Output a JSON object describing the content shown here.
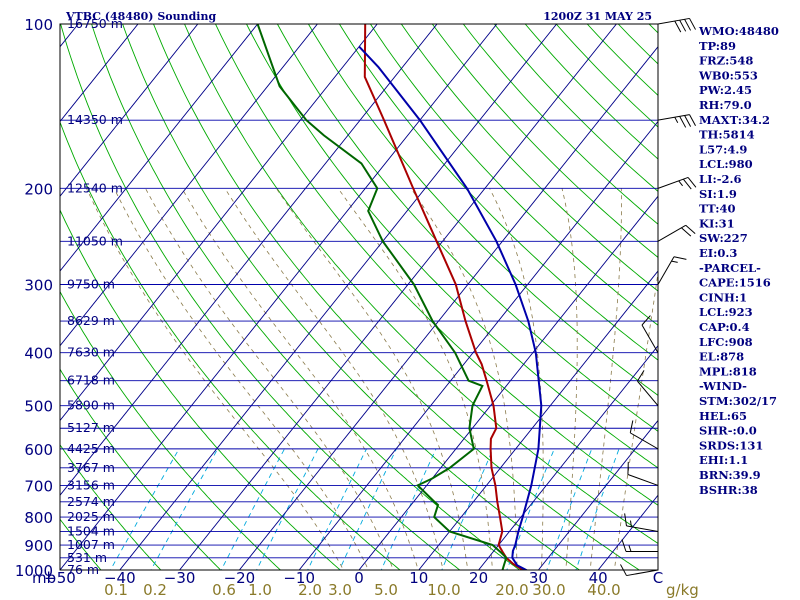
{
  "header": {
    "station": "VTBC (48480) Sounding",
    "time": "1200Z 31 MAY 25"
  },
  "chart_data": {
    "type": "line",
    "title": "VTBC (48480) Sounding",
    "subtitle": "1200Z 31 MAY 25",
    "y_unit": "mb",
    "x_unit": "C",
    "mixing_ratio_unit": "g/kg",
    "ylim": [
      1000,
      100
    ],
    "xlim": [
      -50,
      50
    ],
    "pressure_ticks": [
      100,
      200,
      300,
      400,
      500,
      600,
      700,
      800,
      900,
      1000
    ],
    "temp_ticks": [
      -50,
      -40,
      -30,
      -20,
      -10,
      0,
      10,
      20,
      30,
      40,
      50
    ],
    "temp_tick_labels": [
      "−50",
      "−40",
      "−30",
      "−20",
      "−10",
      "0",
      "10",
      "20",
      "30",
      "40",
      "C"
    ],
    "mixing_ratio_labels": [
      "0.1",
      "0.2",
      "0.6",
      "1.0",
      "2.0",
      "3.0",
      "5.0",
      "10.0",
      "20.0",
      "30.0",
      "40.0"
    ],
    "mixing_ratio_values": [
      0.1,
      0.2,
      0.6,
      1.0,
      2.0,
      3.0,
      5.0,
      10.0,
      20.0,
      30.0,
      40.0
    ],
    "heights": [
      {
        "p": 100,
        "label": "16750 m"
      },
      {
        "p": 150,
        "label": "14350 m"
      },
      {
        "p": 200,
        "label": "12540 m"
      },
      {
        "p": 250,
        "label": "11050 m"
      },
      {
        "p": 300,
        "label": "9750 m"
      },
      {
        "p": 350,
        "label": "8629 m"
      },
      {
        "p": 400,
        "label": "7630 m"
      },
      {
        "p": 450,
        "label": "6718 m"
      },
      {
        "p": 500,
        "label": "5890 m"
      },
      {
        "p": 550,
        "label": "5127 m"
      },
      {
        "p": 600,
        "label": "4425 m"
      },
      {
        "p": 650,
        "label": "3767 m"
      },
      {
        "p": 700,
        "label": "3156 m"
      },
      {
        "p": 750,
        "label": "2574 m"
      },
      {
        "p": 800,
        "label": "2025 m"
      },
      {
        "p": 850,
        "label": "1504 m"
      },
      {
        "p": 900,
        "label": "1007 m"
      },
      {
        "p": 950,
        "label": "531 m"
      },
      {
        "p": 1000,
        "label": "76 m"
      }
    ],
    "series": [
      {
        "name": "Temperature",
        "color": "#aa0000",
        "points": [
          [
            1006,
            28.6
          ],
          [
            1000,
            27.4
          ],
          [
            975,
            25.0
          ],
          [
            950,
            23.0
          ],
          [
            925,
            21.5
          ],
          [
            900,
            20.0
          ],
          [
            850,
            18.8
          ],
          [
            800,
            16.5
          ],
          [
            750,
            14.0
          ],
          [
            700,
            11.5
          ],
          [
            650,
            8.5
          ],
          [
            600,
            5.8
          ],
          [
            575,
            4.5
          ],
          [
            550,
            4.0
          ],
          [
            500,
            0.5
          ],
          [
            450,
            -4.0
          ],
          [
            420,
            -7.0
          ],
          [
            400,
            -9.5
          ],
          [
            350,
            -15.5
          ],
          [
            300,
            -22.0
          ],
          [
            250,
            -31.0
          ],
          [
            200,
            -42.0
          ],
          [
            150,
            -56.0
          ],
          [
            125,
            -65.0
          ],
          [
            100,
            -72.0
          ]
        ]
      },
      {
        "name": "Dewpoint",
        "color": "#006600",
        "points": [
          [
            1006,
            24.8
          ],
          [
            1000,
            24.0
          ],
          [
            975,
            23.5
          ],
          [
            950,
            23.0
          ],
          [
            930,
            21.5
          ],
          [
            900,
            19.0
          ],
          [
            850,
            10.0
          ],
          [
            800,
            5.5
          ],
          [
            760,
            4.5
          ],
          [
            750,
            3.5
          ],
          [
            700,
            -1.5
          ],
          [
            680,
            0.0
          ],
          [
            650,
            1.5
          ],
          [
            600,
            3.0
          ],
          [
            550,
            -0.5
          ],
          [
            500,
            -3.0
          ],
          [
            460,
            -4.0
          ],
          [
            450,
            -7.0
          ],
          [
            400,
            -13.0
          ],
          [
            350,
            -21.0
          ],
          [
            300,
            -29.0
          ],
          [
            250,
            -40.0
          ],
          [
            220,
            -46.5
          ],
          [
            200,
            -48.0
          ],
          [
            180,
            -54.0
          ],
          [
            160,
            -64.0
          ],
          [
            150,
            -69.0
          ],
          [
            130,
            -78.0
          ],
          [
            100,
            -90.0
          ]
        ]
      },
      {
        "name": "Parcel",
        "color": "#0000aa",
        "points": [
          [
            1006,
            28.6
          ],
          [
            980,
            25.8
          ],
          [
            950,
            24.0
          ],
          [
            923,
            23.2
          ],
          [
            900,
            22.8
          ],
          [
            850,
            21.5
          ],
          [
            800,
            20.3
          ],
          [
            700,
            17.5
          ],
          [
            600,
            13.8
          ],
          [
            500,
            8.5
          ],
          [
            400,
            0.5
          ],
          [
            350,
            -5.0
          ],
          [
            300,
            -12.0
          ],
          [
            250,
            -21.0
          ],
          [
            200,
            -33.0
          ],
          [
            150,
            -50.0
          ],
          [
            120,
            -64.0
          ],
          [
            110,
            -70.0
          ]
        ]
      }
    ],
    "barbs": [
      {
        "p": 1000,
        "dir": 260,
        "spd": 10
      },
      {
        "p": 925,
        "dir": 270,
        "spd": 15
      },
      {
        "p": 850,
        "dir": 280,
        "spd": 15
      },
      {
        "p": 700,
        "dir": 290,
        "spd": 10
      },
      {
        "p": 600,
        "dir": 300,
        "spd": 10
      },
      {
        "p": 500,
        "dir": 320,
        "spd": 10
      },
      {
        "p": 400,
        "dir": 330,
        "spd": 10
      },
      {
        "p": 300,
        "dir": 30,
        "spd": 15
      },
      {
        "p": 250,
        "dir": 60,
        "spd": 20
      },
      {
        "p": 200,
        "dir": 70,
        "spd": 25
      },
      {
        "p": 150,
        "dir": 80,
        "spd": 35
      },
      {
        "p": 100,
        "dir": 80,
        "spd": 40
      }
    ]
  },
  "indices": [
    {
      "key": "WMO",
      "value": "48480",
      "text": "WMO:48480"
    },
    {
      "key": "TP",
      "value": "89",
      "text": "TP:89"
    },
    {
      "key": "FRZ",
      "value": "548",
      "text": "FRZ:548"
    },
    {
      "key": "WB0",
      "value": "553",
      "text": "WB0:553"
    },
    {
      "key": "PW",
      "value": "2.45",
      "text": "PW:2.45"
    },
    {
      "key": "RH",
      "value": "79.0",
      "text": "RH:79.0"
    },
    {
      "key": "MAXT",
      "value": "34.2",
      "text": "MAXT:34.2"
    },
    {
      "key": "TH",
      "value": "5814",
      "text": "TH:5814"
    },
    {
      "key": "L57",
      "value": "4.9",
      "text": "L57:4.9"
    },
    {
      "key": "LCL",
      "value": "980",
      "text": "LCL:980"
    },
    {
      "key": "LI",
      "value": "-2.6",
      "text": "LI:-2.6"
    },
    {
      "key": "SI",
      "value": "1.9",
      "text": "SI:1.9"
    },
    {
      "key": "TT",
      "value": "40",
      "text": "TT:40"
    },
    {
      "key": "KI",
      "value": "31",
      "text": "KI:31"
    },
    {
      "key": "SW",
      "value": "227",
      "text": "SW:227"
    },
    {
      "key": "EI",
      "value": "0.3",
      "text": "EI:0.3"
    },
    {
      "key": "section",
      "value": "",
      "text": "-PARCEL-"
    },
    {
      "key": "CAPE",
      "value": "1516",
      "text": "CAPE:1516"
    },
    {
      "key": "CINH",
      "value": "1",
      "text": "CINH:1"
    },
    {
      "key": "LCL",
      "value": "923",
      "text": "LCL:923"
    },
    {
      "key": "CAP",
      "value": "0.4",
      "text": "CAP:0.4"
    },
    {
      "key": "LFC",
      "value": "908",
      "text": "LFC:908"
    },
    {
      "key": "EL",
      "value": "878",
      "text": "EL:878"
    },
    {
      "key": "MPL",
      "value": "818",
      "text": "MPL:818"
    },
    {
      "key": "section",
      "value": "",
      "text": "-WIND-"
    },
    {
      "key": "STM",
      "value": "302/17",
      "text": "STM:302/17"
    },
    {
      "key": "HEL",
      "value": "65",
      "text": "HEL:65"
    },
    {
      "key": "SHR",
      "value": "-:0.0",
      "text": "SHR-:0.0"
    },
    {
      "key": "SRDS",
      "value": "131",
      "text": "SRDS:131"
    },
    {
      "key": "EHI",
      "value": "1.1",
      "text": "EHI:1.1"
    },
    {
      "key": "BRN",
      "value": "39.9",
      "text": "BRN:39.9"
    },
    {
      "key": "BSHR",
      "value": "38",
      "text": "BSHR:38"
    }
  ],
  "colors": {
    "frame": "#000000",
    "isobar": "#0000aa",
    "isotherm": "#000088",
    "dry_adiabat": "#00aa00",
    "moist_adiabat": "#8a7a4a",
    "mixing_ratio": "#00aadd",
    "text": "#00007f"
  }
}
